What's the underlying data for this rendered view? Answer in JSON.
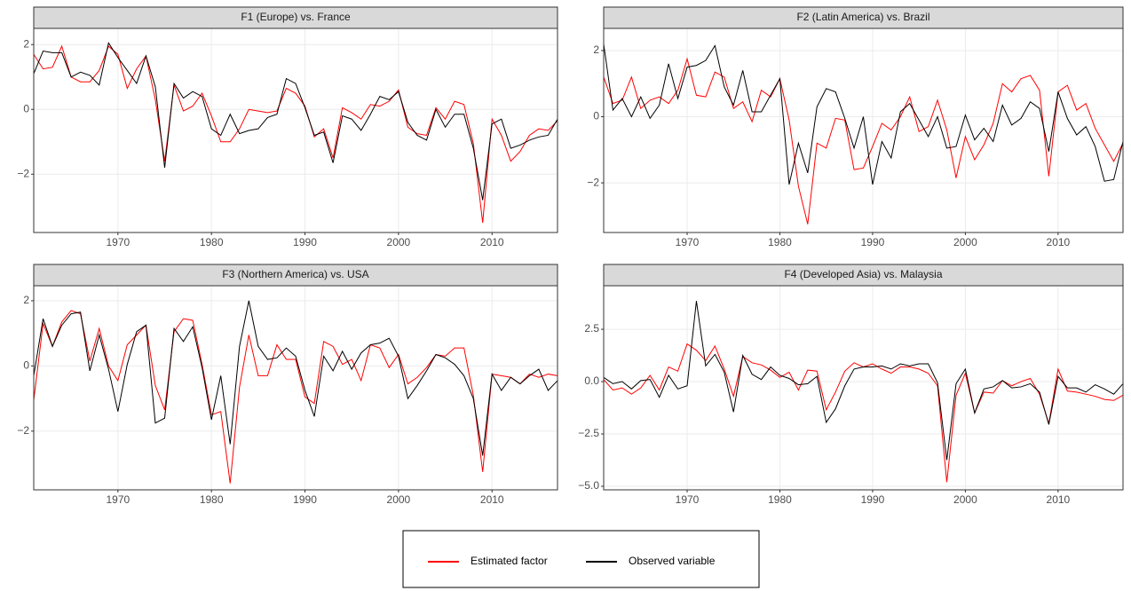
{
  "chart_data": [
    {
      "type": "line",
      "title": "F1 (Europe) vs. France",
      "x": [
        1961,
        1962,
        1963,
        1964,
        1965,
        1966,
        1967,
        1968,
        1969,
        1970,
        1971,
        1972,
        1973,
        1974,
        1975,
        1976,
        1977,
        1978,
        1979,
        1980,
        1981,
        1982,
        1983,
        1984,
        1985,
        1986,
        1987,
        1988,
        1989,
        1990,
        1991,
        1992,
        1993,
        1994,
        1995,
        1996,
        1997,
        1998,
        1999,
        2000,
        2001,
        2002,
        2003,
        2004,
        2005,
        2006,
        2007,
        2008,
        2009,
        2010,
        2011,
        2012,
        2013,
        2014,
        2015,
        2016,
        2017
      ],
      "xlim": [
        1961,
        2017
      ],
      "xticks": [
        1970,
        1980,
        1990,
        2000,
        2010
      ],
      "ylim": [
        -3.8,
        2.5
      ],
      "yticks": [
        {
          "value": -2,
          "label": "−2"
        },
        0,
        2
      ],
      "grid": true,
      "series": [
        {
          "color": "#ff0000",
          "values": [
            1.7,
            1.25,
            1.3,
            1.95,
            1.0,
            0.85,
            0.85,
            1.2,
            1.95,
            1.7,
            0.65,
            1.25,
            1.65,
            0.3,
            -1.6,
            0.75,
            -0.05,
            0.1,
            0.5,
            -0.2,
            -1.0,
            -1.0,
            -0.6,
            0.0,
            -0.05,
            -0.1,
            -0.05,
            0.65,
            0.5,
            0.1,
            -0.85,
            -0.6,
            -1.5,
            0.05,
            -0.1,
            -0.3,
            0.15,
            0.1,
            0.25,
            0.6,
            -0.55,
            -0.75,
            -0.8,
            0.05,
            -0.3,
            0.25,
            0.15,
            -1.05,
            -3.5,
            -0.3,
            -0.8,
            -1.6,
            -1.3,
            -0.8,
            -0.6,
            -0.65,
            -0.35
          ]
        },
        {
          "color": "#000000",
          "values": [
            1.1,
            1.8,
            1.75,
            1.75,
            1.0,
            1.15,
            1.05,
            0.75,
            2.05,
            1.6,
            1.2,
            0.8,
            1.65,
            0.7,
            -1.8,
            0.8,
            0.35,
            0.55,
            0.4,
            -0.6,
            -0.8,
            -0.15,
            -0.75,
            -0.65,
            -0.6,
            -0.25,
            -0.15,
            0.95,
            0.8,
            0.05,
            -0.8,
            -0.7,
            -1.65,
            -0.2,
            -0.3,
            -0.65,
            -0.15,
            0.4,
            0.3,
            0.55,
            -0.4,
            -0.8,
            -0.95,
            0.0,
            -0.55,
            -0.15,
            -0.15,
            -1.2,
            -2.8,
            -0.45,
            -0.3,
            -1.2,
            -1.1,
            -0.95,
            -0.85,
            -0.8,
            -0.3
          ]
        }
      ]
    },
    {
      "type": "line",
      "title": "F2 (Latin America) vs. Brazil",
      "x": [
        1961,
        1962,
        1963,
        1964,
        1965,
        1966,
        1967,
        1968,
        1969,
        1970,
        1971,
        1972,
        1973,
        1974,
        1975,
        1976,
        1977,
        1978,
        1979,
        1980,
        1981,
        1982,
        1983,
        1984,
        1985,
        1986,
        1987,
        1988,
        1989,
        1990,
        1991,
        1992,
        1993,
        1994,
        1995,
        1996,
        1997,
        1998,
        1999,
        2000,
        2001,
        2002,
        2003,
        2004,
        2005,
        2006,
        2007,
        2008,
        2009,
        2010,
        2011,
        2012,
        2013,
        2014,
        2015,
        2016,
        2017
      ],
      "xlim": [
        1961,
        2017
      ],
      "xticks": [
        1970,
        1980,
        1990,
        2000,
        2010
      ],
      "ylim": [
        -3.5,
        2.67
      ],
      "yticks": [
        {
          "value": -2,
          "label": "−2"
        },
        0,
        2
      ],
      "grid": true,
      "series": [
        {
          "color": "#ff0000",
          "values": [
            1.2,
            0.4,
            0.5,
            1.2,
            0.25,
            0.5,
            0.6,
            0.4,
            0.8,
            1.75,
            0.65,
            0.6,
            1.35,
            1.2,
            0.25,
            0.45,
            -0.15,
            0.8,
            0.6,
            1.15,
            -0.1,
            -2.1,
            -3.25,
            -0.8,
            -0.95,
            -0.05,
            -0.1,
            -1.6,
            -1.55,
            -0.9,
            -0.2,
            -0.4,
            0.0,
            0.6,
            -0.45,
            -0.3,
            0.5,
            -0.4,
            -1.85,
            -0.6,
            -1.3,
            -0.85,
            -0.2,
            1.0,
            0.75,
            1.15,
            1.25,
            0.8,
            -1.8,
            0.75,
            0.95,
            0.2,
            0.4,
            -0.35,
            -0.85,
            -1.35,
            -0.8
          ]
        },
        {
          "color": "#000000",
          "values": [
            2.2,
            0.2,
            0.55,
            0.0,
            0.6,
            -0.05,
            0.35,
            1.6,
            0.55,
            1.5,
            1.55,
            1.7,
            2.15,
            0.9,
            0.35,
            1.4,
            0.15,
            0.15,
            0.65,
            1.15,
            -2.05,
            -0.8,
            -1.7,
            0.3,
            0.85,
            0.75,
            -0.05,
            -0.95,
            0.0,
            -2.05,
            -0.75,
            -1.25,
            0.15,
            0.4,
            -0.1,
            -0.6,
            0.0,
            -0.95,
            -0.9,
            0.05,
            -0.7,
            -0.35,
            -0.75,
            0.35,
            -0.25,
            -0.05,
            0.45,
            0.25,
            -1.05,
            0.75,
            -0.05,
            -0.55,
            -0.3,
            -0.9,
            -1.95,
            -1.9,
            -0.75
          ]
        }
      ]
    },
    {
      "type": "line",
      "title": "F3 (Northern America) vs. USA",
      "x": [
        1961,
        1962,
        1963,
        1964,
        1965,
        1966,
        1967,
        1968,
        1969,
        1970,
        1971,
        1972,
        1973,
        1974,
        1975,
        1976,
        1977,
        1978,
        1979,
        1980,
        1981,
        1982,
        1983,
        1984,
        1985,
        1986,
        1987,
        1988,
        1989,
        1990,
        1991,
        1992,
        1993,
        1994,
        1995,
        1996,
        1997,
        1998,
        1999,
        2000,
        2001,
        2002,
        2003,
        2004,
        2005,
        2006,
        2007,
        2008,
        2009,
        2010,
        2011,
        2012,
        2013,
        2014,
        2015,
        2016,
        2017
      ],
      "xlim": [
        1961,
        2017
      ],
      "xticks": [
        1970,
        1980,
        1990,
        2000,
        2010
      ],
      "ylim": [
        -3.8,
        2.46
      ],
      "yticks": [
        {
          "value": -2,
          "label": "−2"
        },
        0,
        2
      ],
      "grid": true,
      "series": [
        {
          "color": "#ff0000",
          "values": [
            -1.05,
            1.3,
            0.6,
            1.35,
            1.7,
            1.6,
            0.15,
            1.15,
            0.0,
            -0.45,
            0.65,
            0.95,
            1.25,
            -0.6,
            -1.35,
            1.05,
            1.45,
            1.4,
            0.05,
            -1.5,
            -1.4,
            -3.6,
            -0.65,
            0.95,
            -0.3,
            -0.3,
            0.65,
            0.2,
            0.2,
            -0.95,
            -1.15,
            0.75,
            0.6,
            0.05,
            0.2,
            -0.45,
            0.65,
            0.55,
            -0.05,
            0.35,
            -0.55,
            -0.35,
            -0.05,
            0.35,
            0.3,
            0.55,
            0.55,
            -0.9,
            -3.25,
            -0.25,
            -0.3,
            -0.35,
            -0.55,
            -0.25,
            -0.35,
            -0.25,
            -0.3
          ]
        },
        {
          "color": "#000000",
          "values": [
            -0.3,
            1.45,
            0.6,
            1.25,
            1.6,
            1.65,
            -0.15,
            0.95,
            -0.1,
            -1.4,
            0.05,
            1.05,
            1.25,
            -1.75,
            -1.6,
            1.15,
            0.75,
            1.2,
            -0.05,
            -1.65,
            -0.3,
            -2.4,
            0.6,
            2.0,
            0.6,
            0.2,
            0.25,
            0.55,
            0.3,
            -0.75,
            -1.55,
            0.3,
            -0.15,
            0.45,
            -0.1,
            0.4,
            0.65,
            0.7,
            0.85,
            0.3,
            -1.0,
            -0.6,
            -0.15,
            0.35,
            0.25,
            0.05,
            -0.3,
            -1.0,
            -2.75,
            -0.25,
            -0.75,
            -0.35,
            -0.55,
            -0.3,
            -0.1,
            -0.75,
            -0.45
          ]
        }
      ]
    },
    {
      "type": "line",
      "title": "F4 (Developed Asia) vs. Malaysia",
      "x": [
        1961,
        1962,
        1963,
        1964,
        1965,
        1966,
        1967,
        1968,
        1969,
        1970,
        1971,
        1972,
        1973,
        1974,
        1975,
        1976,
        1977,
        1978,
        1979,
        1980,
        1981,
        1982,
        1983,
        1984,
        1985,
        1986,
        1987,
        1988,
        1989,
        1990,
        1991,
        1992,
        1993,
        1994,
        1995,
        1996,
        1997,
        1998,
        1999,
        2000,
        2001,
        2002,
        2003,
        2004,
        2005,
        2006,
        2007,
        2008,
        2009,
        2010,
        2011,
        2012,
        2013,
        2014,
        2015,
        2016,
        2017
      ],
      "xlim": [
        1961,
        2017
      ],
      "xticks": [
        1970,
        1980,
        1990,
        2000,
        2010
      ],
      "ylim": [
        -5.17,
        4.58
      ],
      "yticks": [
        {
          "value": -5,
          "label": "−5.0"
        },
        {
          "value": -2.5,
          "label": "−2.5"
        },
        {
          "value": 0,
          "label": "0.0"
        },
        2.5
      ],
      "grid": true,
      "series": [
        {
          "color": "#ff0000",
          "values": [
            0.1,
            -0.4,
            -0.3,
            -0.6,
            -0.3,
            0.3,
            -0.4,
            0.7,
            0.5,
            1.8,
            1.5,
            1.0,
            1.7,
            0.6,
            -0.7,
            1.2,
            0.9,
            0.8,
            0.55,
            0.2,
            0.45,
            -0.4,
            0.55,
            0.5,
            -1.35,
            -0.5,
            0.5,
            0.9,
            0.7,
            0.85,
            0.6,
            0.4,
            0.7,
            0.7,
            0.6,
            0.4,
            -0.2,
            -4.8,
            -0.65,
            0.4,
            -1.5,
            -0.5,
            -0.55,
            0.05,
            -0.2,
            0.0,
            0.15,
            -0.6,
            -2.0,
            0.6,
            -0.45,
            -0.5,
            -0.6,
            -0.7,
            -0.85,
            -0.9,
            -0.65
          ]
        },
        {
          "color": "#000000",
          "values": [
            0.2,
            -0.1,
            0.0,
            -0.35,
            0.05,
            0.1,
            -0.75,
            0.3,
            -0.35,
            -0.2,
            3.85,
            0.75,
            1.3,
            0.45,
            -1.45,
            1.25,
            0.35,
            0.1,
            0.7,
            0.3,
            0.15,
            -0.15,
            -0.1,
            0.25,
            -1.95,
            -1.3,
            -0.2,
            0.6,
            0.7,
            0.7,
            0.75,
            0.6,
            0.85,
            0.75,
            0.85,
            0.85,
            -0.05,
            -3.75,
            -0.1,
            0.6,
            -1.5,
            -0.35,
            -0.25,
            0.05,
            -0.3,
            -0.25,
            -0.1,
            -0.5,
            -2.05,
            0.25,
            -0.3,
            -0.3,
            -0.5,
            -0.15,
            -0.35,
            -0.6,
            -0.1
          ]
        }
      ]
    }
  ],
  "legend": {
    "position": "bottom",
    "entries": [
      {
        "label": "Estimated factor",
        "color": "#ff0000"
      },
      {
        "label": "Observed variable",
        "color": "#000000"
      }
    ]
  }
}
